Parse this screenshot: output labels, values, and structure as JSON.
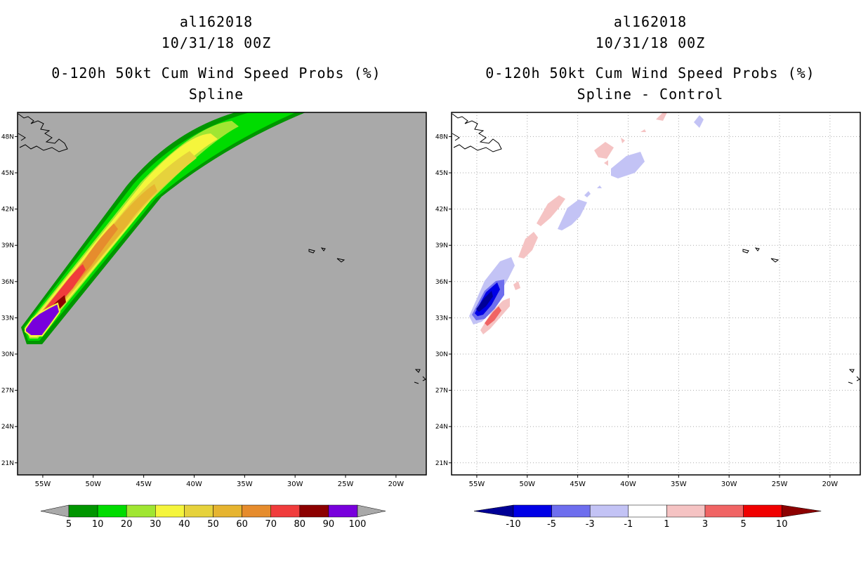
{
  "panels": [
    {
      "storm": "al162018",
      "date": "10/31/18 00Z",
      "title": "0-120h 50kt Cum Wind Speed Probs (%)",
      "subtitle": "Spline"
    },
    {
      "storm": "al162018",
      "date": "10/31/18 00Z",
      "title": "0-120h 50kt Cum Wind Speed Probs (%)",
      "subtitle": "Spline - Control"
    }
  ],
  "chart_data": [
    {
      "type": "heatmap",
      "title": "0-120h 50kt Cum Wind Speed Probs (%)",
      "subtitle": "Spline",
      "x_ticks": [
        "55W",
        "50W",
        "45W",
        "40W",
        "35W",
        "30W",
        "25W",
        "20W"
      ],
      "y_ticks": [
        "48N",
        "45N",
        "42N",
        "39N",
        "36N",
        "33N",
        "30N",
        "27N",
        "24N",
        "21N"
      ],
      "x_range_deg_lon": [
        -57.5,
        -17.0
      ],
      "y_range_deg_lat": [
        20.0,
        50.0
      ],
      "grid": false,
      "colorbar": {
        "levels": [
          "5",
          "10",
          "20",
          "30",
          "40",
          "50",
          "60",
          "70",
          "80",
          "90",
          "100"
        ],
        "colors": [
          "#009600",
          "#00dc00",
          "#a0e632",
          "#f5f53c",
          "#e6d23c",
          "#e6b430",
          "#e68c2d",
          "#f03c3c",
          "#8c0000",
          "#7800dc"
        ],
        "low_color": "#a9a9a9",
        "high_color": "#a9a9a9"
      }
    },
    {
      "type": "heatmap",
      "title": "0-120h 50kt Cum Wind Speed Probs (%)",
      "subtitle": "Spline - Control",
      "x_ticks": [
        "55W",
        "50W",
        "45W",
        "40W",
        "35W",
        "30W",
        "25W",
        "20W"
      ],
      "y_ticks": [
        "48N",
        "45N",
        "42N",
        "39N",
        "36N",
        "33N",
        "30N",
        "27N",
        "24N",
        "21N"
      ],
      "x_range_deg_lon": [
        -57.5,
        -17.0
      ],
      "y_range_deg_lat": [
        20.0,
        50.0
      ],
      "grid": true,
      "colorbar": {
        "levels": [
          "-10",
          "-5",
          "-3",
          "-1",
          "1",
          "3",
          "5",
          "10"
        ],
        "colors": [
          "#0000e6",
          "#6e6eee",
          "#c3c3f5",
          "#ffffff",
          "#f5c3c3",
          "#f06464",
          "#f00000"
        ],
        "low_color": "#000096",
        "high_color": "#8c0000"
      }
    }
  ]
}
